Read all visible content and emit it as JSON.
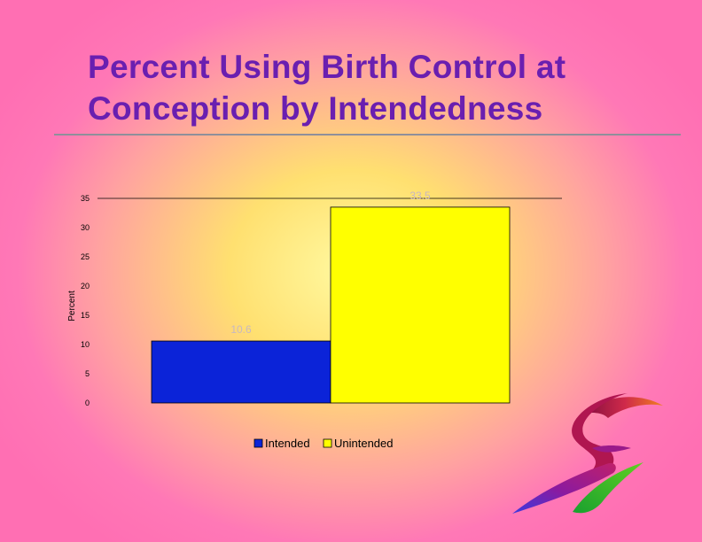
{
  "slide": {
    "title_line1": "Percent Using Birth Control at",
    "title_line2": "Conception by Intendedness"
  },
  "chart_data": {
    "type": "bar",
    "categories": [
      "Intended",
      "Unintended"
    ],
    "values": [
      10.6,
      33.5
    ],
    "value_labels": [
      "10.6",
      "33.5"
    ],
    "colors": [
      "#0b23d8",
      "#ffff00"
    ],
    "ylabel": "Percent",
    "xlabel": "",
    "ylim": [
      0,
      35
    ],
    "yticks": [
      0,
      5,
      10,
      15,
      20,
      25,
      30,
      35
    ],
    "gridlines": [
      35
    ],
    "legend": {
      "placement": "bottom",
      "entries": [
        {
          "label": "Intended",
          "color": "#0b23d8"
        },
        {
          "label": "Unintended",
          "color": "#ffff00"
        }
      ]
    }
  }
}
